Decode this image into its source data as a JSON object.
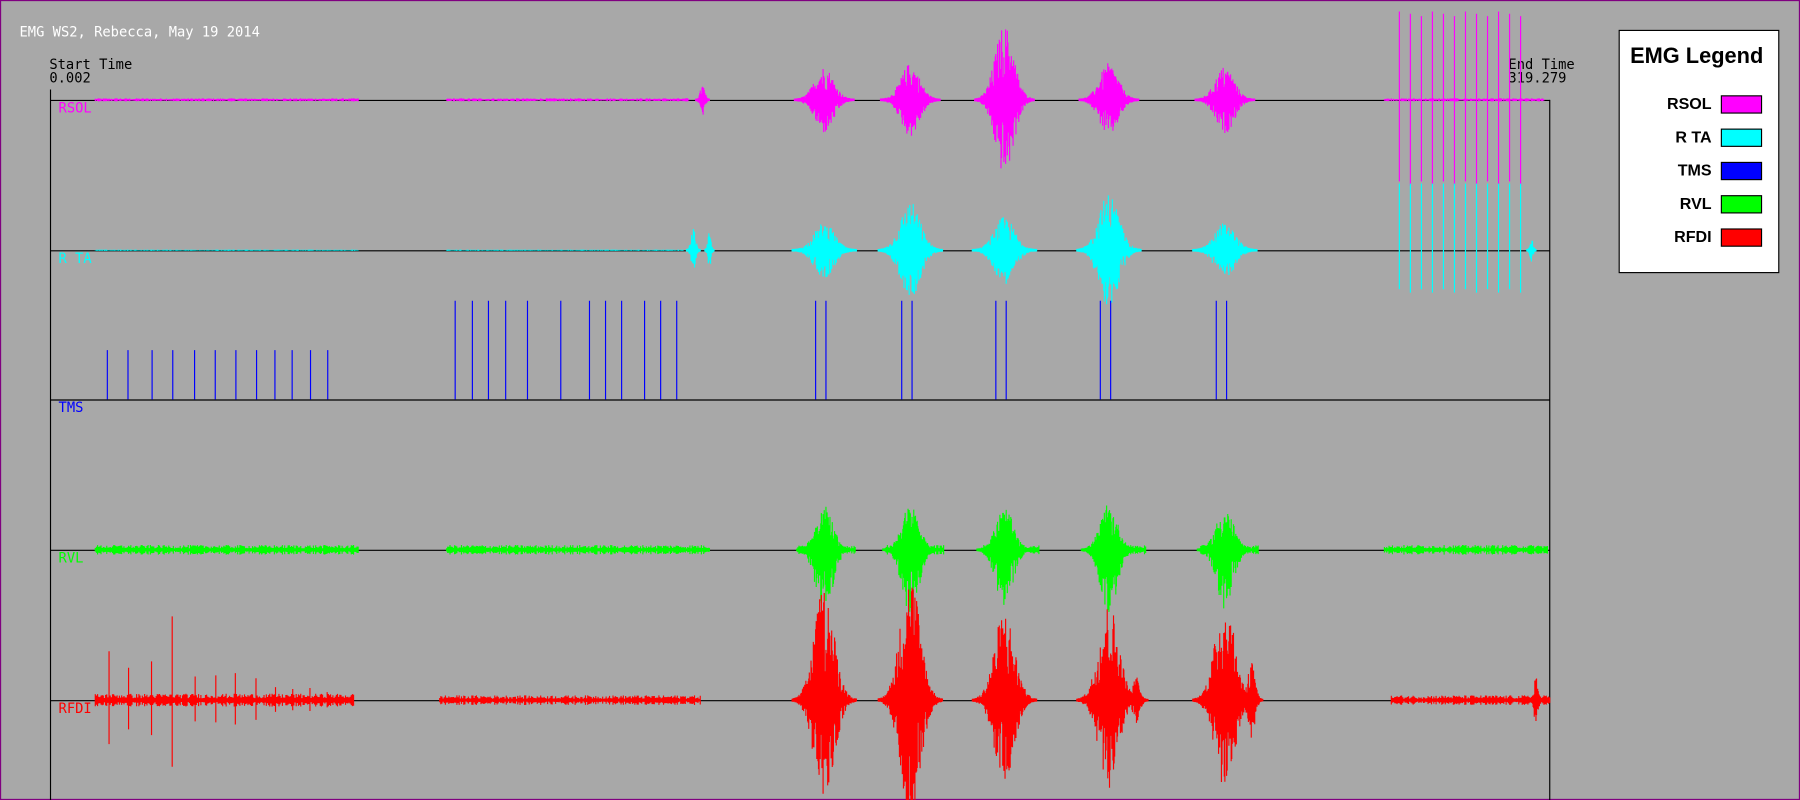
{
  "title": "EMG WS2, Rebecca, May 19 2014",
  "start_time": {
    "label": "Start Time",
    "value": "0.002"
  },
  "end_time": {
    "label": "End Time",
    "value": "319.279"
  },
  "legend": {
    "title": "EMG Legend",
    "entries": [
      {
        "name": "RSOL",
        "color": "#ff00ff"
      },
      {
        "name": "R TA",
        "color": "#00ffff"
      },
      {
        "name": "TMS",
        "color": "#0000ff"
      },
      {
        "name": "RVL",
        "color": "#00ff00"
      },
      {
        "name": "RFDI",
        "color": "#ff0000"
      }
    ]
  }
}
